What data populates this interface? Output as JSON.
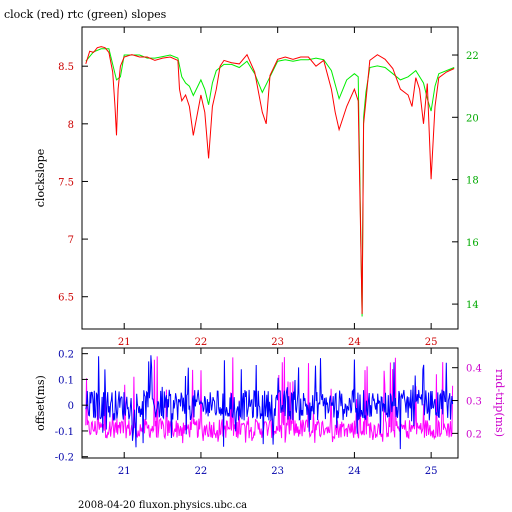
{
  "chart_data": [
    {
      "type": "line",
      "title": "clock (red) rtc (green) slopes",
      "xlabel": "",
      "ylabel": "clockslope",
      "y2label": "",
      "xlim": [
        20.45,
        25.35
      ],
      "ylim": [
        6.22,
        8.84
      ],
      "y2lim": [
        13.2,
        22.9
      ],
      "x_ticks": [
        "21",
        "22",
        "23",
        "24",
        "25"
      ],
      "x_tick_values": [
        21,
        22,
        23,
        24,
        25
      ],
      "y_ticks": [
        "6.5",
        "7",
        "7.5",
        "8",
        "8.5"
      ],
      "y_tick_values": [
        6.5,
        7,
        7.5,
        8,
        8.5
      ],
      "y2_ticks": [
        "14",
        "16",
        "18",
        "20",
        "22"
      ],
      "y2_tick_values": [
        14,
        16,
        18,
        20,
        22
      ],
      "colors": {
        "series_clock": "#ff0000",
        "series_rtc": "#00ee00",
        "left_axis": "#cc0000",
        "right_axis": "#00aa00",
        "x_ticks": "#cc0000"
      },
      "series": [
        {
          "axis": "left",
          "color": "#ff0000",
          "x": [
            20.5,
            20.55,
            20.6,
            20.65,
            20.7,
            20.75,
            20.8,
            20.85,
            20.88,
            20.9,
            20.92,
            20.95,
            21.0,
            21.1,
            21.2,
            21.3,
            21.4,
            21.5,
            21.6,
            21.7,
            21.72,
            21.75,
            21.8,
            21.85,
            21.9,
            22.0,
            22.05,
            22.1,
            22.15,
            22.2,
            22.25,
            22.3,
            22.4,
            22.5,
            22.6,
            22.7,
            22.8,
            22.85,
            22.9,
            23.0,
            23.1,
            23.2,
            23.3,
            23.4,
            23.5,
            23.6,
            23.7,
            23.75,
            23.8,
            23.85,
            23.9,
            24.0,
            24.05,
            24.1,
            24.12,
            24.15,
            24.2,
            24.3,
            24.4,
            24.5,
            24.6,
            24.7,
            24.75,
            24.8,
            24.85,
            24.9,
            24.95,
            25.0,
            25.05,
            25.1,
            25.2,
            25.3
          ],
          "y": [
            8.52,
            8.63,
            8.62,
            8.66,
            8.67,
            8.66,
            8.62,
            8.45,
            8.15,
            7.9,
            8.3,
            8.5,
            8.58,
            8.6,
            8.58,
            8.58,
            8.55,
            8.57,
            8.58,
            8.55,
            8.3,
            8.2,
            8.25,
            8.15,
            7.9,
            8.25,
            8.1,
            7.7,
            8.15,
            8.3,
            8.5,
            8.55,
            8.53,
            8.52,
            8.6,
            8.45,
            8.1,
            8.0,
            8.42,
            8.56,
            8.58,
            8.56,
            8.58,
            8.58,
            8.5,
            8.55,
            8.3,
            8.1,
            7.95,
            8.05,
            8.15,
            8.3,
            8.2,
            6.35,
            8.0,
            8.2,
            8.55,
            8.6,
            8.56,
            8.48,
            8.3,
            8.25,
            8.15,
            8.4,
            8.3,
            8.0,
            8.35,
            7.52,
            8.15,
            8.4,
            8.45,
            8.48
          ]
        },
        {
          "axis": "right",
          "color": "#00ee00",
          "x": [
            20.5,
            20.6,
            20.7,
            20.8,
            20.85,
            20.9,
            20.95,
            21.0,
            21.1,
            21.2,
            21.3,
            21.4,
            21.5,
            21.6,
            21.7,
            21.75,
            21.8,
            21.85,
            21.9,
            22.0,
            22.05,
            22.1,
            22.15,
            22.2,
            22.3,
            22.4,
            22.5,
            22.6,
            22.7,
            22.8,
            22.9,
            23.0,
            23.1,
            23.2,
            23.3,
            23.4,
            23.5,
            23.6,
            23.7,
            23.8,
            23.85,
            23.9,
            24.0,
            24.05,
            24.1,
            24.12,
            24.15,
            24.2,
            24.3,
            24.4,
            24.5,
            24.6,
            24.7,
            24.8,
            24.9,
            24.95,
            25.0,
            25.05,
            25.1,
            25.2,
            25.3
          ],
          "y": [
            21.8,
            22.1,
            22.2,
            22.2,
            21.7,
            21.2,
            21.3,
            22.0,
            22.0,
            22.0,
            21.9,
            21.9,
            21.95,
            22.0,
            21.9,
            21.3,
            21.1,
            21.0,
            20.7,
            21.2,
            20.9,
            20.4,
            21.1,
            21.5,
            21.7,
            21.7,
            21.6,
            21.8,
            21.4,
            20.8,
            21.3,
            21.8,
            21.85,
            21.8,
            21.85,
            21.85,
            21.9,
            21.85,
            21.5,
            20.6,
            20.9,
            21.2,
            21.4,
            21.3,
            13.6,
            20.0,
            20.8,
            21.6,
            21.65,
            21.6,
            21.4,
            21.2,
            21.3,
            21.5,
            21.1,
            20.6,
            20.2,
            21.0,
            21.4,
            21.5,
            21.6
          ]
        }
      ]
    },
    {
      "type": "line",
      "title": "",
      "xlabel": "",
      "ylabel": "offset(ms)",
      "y2label": "rnd-trip(ms)",
      "xlim": [
        20.45,
        25.35
      ],
      "ylim": [
        -0.205,
        0.222
      ],
      "y2lim": [
        0.125,
        0.46
      ],
      "x_ticks": [
        "21",
        "22",
        "23",
        "24",
        "25"
      ],
      "x_tick_values": [
        21,
        22,
        23,
        24,
        25
      ],
      "y_ticks": [
        "-0.2",
        "-0.1",
        "0",
        "0.1",
        "0.2"
      ],
      "y_tick_values": [
        -0.2,
        -0.1,
        0,
        0.1,
        0.2
      ],
      "y2_ticks": [
        "0.2",
        "0.3",
        "0.4"
      ],
      "y2_tick_values": [
        0.2,
        0.3,
        0.4
      ],
      "colors": {
        "offset": "#0000ff",
        "rnd_trip": "#ff00ff",
        "left_axis": "#0000aa",
        "right_axis": "#cc00cc",
        "x_ticks": "#0000aa"
      },
      "series": [
        {
          "axis": "left",
          "color": "#0000ff",
          "x_start": 20.5,
          "x_end": 25.28,
          "points": 520,
          "center": 0.0,
          "spread": 0.06,
          "spike_max": 0.2,
          "spike_min": -0.175
        },
        {
          "axis": "right",
          "color": "#ff00ff",
          "x_start": 20.5,
          "x_end": 25.28,
          "points": 520,
          "center": 0.215,
          "spread": 0.03,
          "spike_max": 0.44,
          "spike_min": 0.17
        }
      ]
    }
  ],
  "footer": "2008-04-20 fluxon.physics.ubc.ca"
}
